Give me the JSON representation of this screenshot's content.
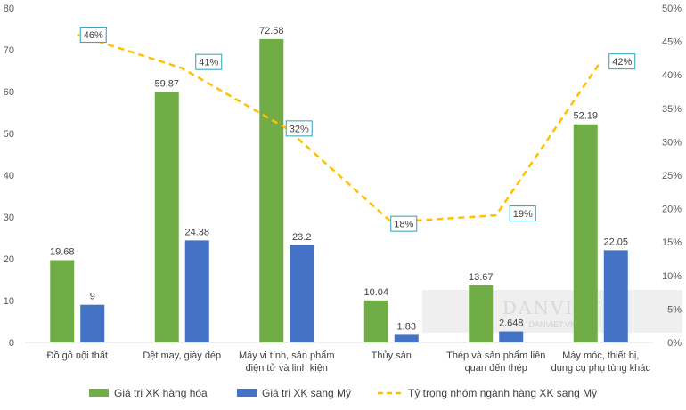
{
  "chart_data": {
    "type": "bar",
    "categories": [
      [
        "Đồ gỗ nội thất"
      ],
      [
        "Dệt may, giày dép"
      ],
      [
        "Máy vi tính, sản phẩm",
        "điện tử và linh kiện"
      ],
      [
        "Thủy sản"
      ],
      [
        "Thép và sản phẩm liên",
        "quan đến thép"
      ],
      [
        "Máy móc, thiết bị,",
        "dụng cụ phụ tùng khác"
      ]
    ],
    "series": [
      {
        "name": "Giá trị XK hàng hóa",
        "type": "bar",
        "color": "#70ad47",
        "values": [
          19.68,
          59.87,
          72.58,
          10.04,
          13.67,
          52.19
        ],
        "labels": [
          "19.68",
          "59.87",
          "72.58",
          "10.04",
          "13.67",
          "52.19"
        ]
      },
      {
        "name": "Giá trị XK sang Mỹ",
        "type": "bar",
        "color": "#4472c4",
        "values": [
          9,
          24.38,
          23.2,
          1.83,
          2.648,
          22.05
        ],
        "labels": [
          "9",
          "24.38",
          "23.2",
          "1.83",
          "2.648",
          "22.05"
        ]
      },
      {
        "name": "Tỷ trọng nhóm ngành hàng XK sang Mỹ",
        "type": "line",
        "color": "#ffc000",
        "axis": "right",
        "values": [
          46,
          41,
          32,
          18,
          19,
          42
        ],
        "labels": [
          "46%",
          "41%",
          "32%",
          "18%",
          "19%",
          "42%"
        ]
      }
    ],
    "y_left": {
      "ylim": [
        0,
        80
      ],
      "ticks": [
        "0",
        "10",
        "20",
        "30",
        "40",
        "50",
        "60",
        "70",
        "80"
      ]
    },
    "y_right": {
      "ylim": [
        0,
        50
      ],
      "ticks": [
        "0%",
        "5%",
        "10%",
        "15%",
        "20%",
        "25%",
        "30%",
        "35%",
        "40%",
        "45%",
        "50%"
      ]
    },
    "grid": false,
    "legend": "bottom",
    "title": "",
    "xlabel": "",
    "ylabel": ""
  },
  "watermark": {
    "text": "DANVIET",
    "sub": "DANVIET.VN"
  }
}
